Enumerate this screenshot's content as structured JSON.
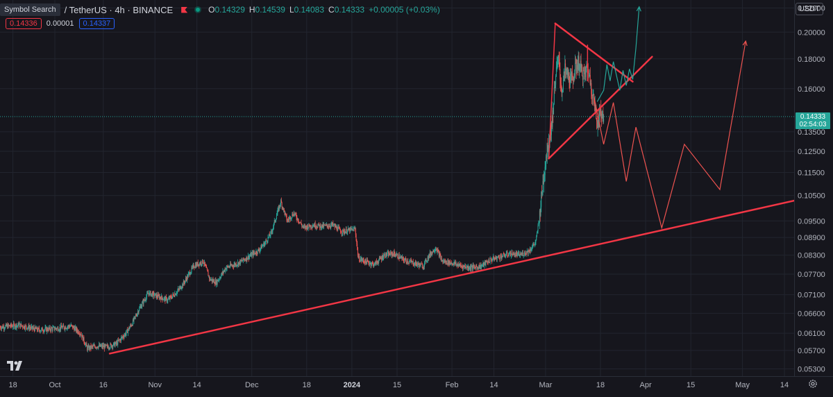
{
  "header": {
    "symbol_search_label": "Symbol Search",
    "symbol_title": "/ TetherUS · 4h · BINANCE",
    "ohlc": [
      {
        "key": "O",
        "value": "0.14329"
      },
      {
        "key": "H",
        "value": "0.14539"
      },
      {
        "key": "L",
        "value": "0.14083"
      },
      {
        "key": "C",
        "value": "0.14333"
      }
    ],
    "change": "+0.00005 (+0.03%)"
  },
  "quotes": {
    "sell": "0.14336",
    "spread": "0.00001",
    "buy": "0.14337"
  },
  "currency_label": "USDT",
  "current_price": {
    "price": "0.14333",
    "countdown": "02:54:03"
  },
  "colors": {
    "background": "#16161d",
    "up": "#26a69a",
    "down": "#ef5350",
    "drawing": "#f23645",
    "projection_up": "#26a69a",
    "projection_down": "#ef5350"
  },
  "icons": {
    "logo": "tradingview-logo",
    "settings": "gear-icon",
    "flag": "flag-icon",
    "status": "market-open-dot-icon"
  },
  "chart_data": {
    "type": "candlestick",
    "title": "/ TetherUS · 4h · BINANCE",
    "y_axis": {
      "scale": "log",
      "ticks": [
        "0.22000",
        "0.20000",
        "0.18000",
        "0.16000",
        "0.13500",
        "0.12500",
        "0.11500",
        "0.10500",
        "0.09500",
        "0.08900",
        "0.08300",
        "0.07700",
        "0.07100",
        "0.06600",
        "0.06100",
        "0.05700",
        "0.05300"
      ],
      "range": [
        0.0515,
        0.227
      ]
    },
    "x_axis": {
      "ticks": [
        {
          "label": "18",
          "date": "2023-09-18"
        },
        {
          "label": "Oct",
          "date": "2023-10-01"
        },
        {
          "label": "16",
          "date": "2023-10-16"
        },
        {
          "label": "Nov",
          "date": "2023-11-01"
        },
        {
          "label": "14",
          "date": "2023-11-14"
        },
        {
          "label": "Dec",
          "date": "2023-12-01"
        },
        {
          "label": "18",
          "date": "2023-12-18"
        },
        {
          "label": "2024",
          "date": "2024-01-01",
          "bold": true
        },
        {
          "label": "15",
          "date": "2024-01-15"
        },
        {
          "label": "Feb",
          "date": "2024-02-01"
        },
        {
          "label": "14",
          "date": "2024-02-14"
        },
        {
          "label": "Mar",
          "date": "2024-03-01"
        },
        {
          "label": "18",
          "date": "2024-03-18"
        },
        {
          "label": "Apr",
          "date": "2024-04-01"
        },
        {
          "label": "15",
          "date": "2024-04-15"
        },
        {
          "label": "May",
          "date": "2024-05-01"
        },
        {
          "label": "14",
          "date": "2024-05-14"
        }
      ],
      "range": [
        "2023-09-14",
        "2024-05-17"
      ]
    },
    "price_path": [
      [
        "2023-09-14",
        0.0625
      ],
      [
        "2023-09-20",
        0.063
      ],
      [
        "2023-09-26",
        0.0618
      ],
      [
        "2023-10-02",
        0.0622
      ],
      [
        "2023-10-06",
        0.0628
      ],
      [
        "2023-10-09",
        0.061
      ],
      [
        "2023-10-11",
        0.0575
      ],
      [
        "2023-10-14",
        0.058
      ],
      [
        "2023-10-17",
        0.0578
      ],
      [
        "2023-10-20",
        0.0585
      ],
      [
        "2023-10-23",
        0.061
      ],
      [
        "2023-10-25",
        0.0635
      ],
      [
        "2023-10-27",
        0.067
      ],
      [
        "2023-10-30",
        0.0715
      ],
      [
        "2023-11-02",
        0.0705
      ],
      [
        "2023-11-05",
        0.0695
      ],
      [
        "2023-11-08",
        0.072
      ],
      [
        "2023-11-10",
        0.0745
      ],
      [
        "2023-11-13",
        0.0795
      ],
      [
        "2023-11-16",
        0.081
      ],
      [
        "2023-11-18",
        0.0755
      ],
      [
        "2023-11-20",
        0.0745
      ],
      [
        "2023-11-23",
        0.079
      ],
      [
        "2023-11-27",
        0.0805
      ],
      [
        "2023-11-30",
        0.0825
      ],
      [
        "2023-12-03",
        0.0845
      ],
      [
        "2023-12-05",
        0.087
      ],
      [
        "2023-12-07",
        0.0905
      ],
      [
        "2023-12-09",
        0.0985
      ],
      [
        "2023-12-10",
        0.1025
      ],
      [
        "2023-12-12",
        0.095
      ],
      [
        "2023-12-14",
        0.098
      ],
      [
        "2023-12-17",
        0.0925
      ],
      [
        "2023-12-20",
        0.0935
      ],
      [
        "2023-12-23",
        0.093
      ],
      [
        "2023-12-26",
        0.0935
      ],
      [
        "2023-12-29",
        0.091
      ],
      [
        "2024-01-02",
        0.092
      ],
      [
        "2024-01-03",
        0.082
      ],
      [
        "2024-01-05",
        0.081
      ],
      [
        "2024-01-08",
        0.08
      ],
      [
        "2024-01-11",
        0.083
      ],
      [
        "2024-01-14",
        0.0835
      ],
      [
        "2024-01-17",
        0.0815
      ],
      [
        "2024-01-20",
        0.0805
      ],
      [
        "2024-01-23",
        0.0795
      ],
      [
        "2024-01-25",
        0.083
      ],
      [
        "2024-01-27",
        0.0855
      ],
      [
        "2024-01-29",
        0.081
      ],
      [
        "2024-02-01",
        0.0805
      ],
      [
        "2024-02-04",
        0.0795
      ],
      [
        "2024-02-07",
        0.079
      ],
      [
        "2024-02-10",
        0.0795
      ],
      [
        "2024-02-13",
        0.0815
      ],
      [
        "2024-02-16",
        0.0825
      ],
      [
        "2024-02-19",
        0.0835
      ],
      [
        "2024-02-22",
        0.083
      ],
      [
        "2024-02-25",
        0.0845
      ],
      [
        "2024-02-27",
        0.0875
      ],
      [
        "2024-02-28",
        0.0955
      ],
      [
        "2024-02-29",
        0.108
      ],
      [
        "2024-03-01",
        0.121
      ],
      [
        "2024-03-02",
        0.131
      ],
      [
        "2024-03-03",
        0.14
      ],
      [
        "2024-03-04",
        0.167
      ],
      [
        "2024-03-05",
        0.18
      ],
      [
        "2024-03-06",
        0.158
      ],
      [
        "2024-03-07",
        0.172
      ],
      [
        "2024-03-09",
        0.165
      ],
      [
        "2024-03-11",
        0.178
      ],
      [
        "2024-03-13",
        0.168
      ],
      [
        "2024-03-14",
        0.175
      ],
      [
        "2024-03-16",
        0.152
      ],
      [
        "2024-03-17",
        0.14
      ],
      [
        "2024-03-18",
        0.146
      ],
      [
        "2024-03-19",
        0.14333
      ]
    ],
    "drawings": {
      "support_trendline": [
        [
          "2023-10-18",
          0.0563
        ],
        [
          "2024-05-17",
          0.1029
        ]
      ],
      "triangle_upper": [
        [
          "2024-03-04",
          0.207
        ],
        [
          "2024-03-28",
          0.1645
        ]
      ],
      "triangle_lower": [
        [
          "2024-03-02",
          0.1215
        ],
        [
          "2024-04-03",
          0.1815
        ]
      ],
      "triangle_left_edge": [
        [
          "2024-03-04",
          0.207
        ],
        [
          "2024-03-02",
          0.1215
        ]
      ],
      "triangle_marker": [
        [
          "2024-03-14",
          0.19
        ],
        [
          "2024-03-14",
          0.165
        ]
      ],
      "bullish_projection": [
        [
          "2024-03-17",
          0.152
        ],
        [
          "2024-03-19",
          0.159
        ],
        [
          "2024-03-20",
          0.176
        ],
        [
          "2024-03-21",
          0.165
        ],
        [
          "2024-03-22",
          0.178
        ],
        [
          "2024-03-24",
          0.159
        ],
        [
          "2024-03-25",
          0.172
        ],
        [
          "2024-03-26",
          0.162
        ],
        [
          "2024-03-27",
          0.173
        ],
        [
          "2024-03-28",
          0.166
        ],
        [
          "2024-03-29",
          0.188
        ],
        [
          "2024-03-30",
          0.221
        ]
      ],
      "bearish_projection": [
        [
          "2024-03-16",
          0.155
        ],
        [
          "2024-03-19",
          0.1285
        ],
        [
          "2024-03-22",
          0.1515
        ],
        [
          "2024-03-26",
          0.111
        ],
        [
          "2024-03-29",
          0.1375
        ],
        [
          "2024-04-06",
          0.0924
        ],
        [
          "2024-04-13",
          0.1285
        ],
        [
          "2024-04-24",
          0.1075
        ],
        [
          "2024-05-02",
          0.193
        ]
      ]
    }
  }
}
